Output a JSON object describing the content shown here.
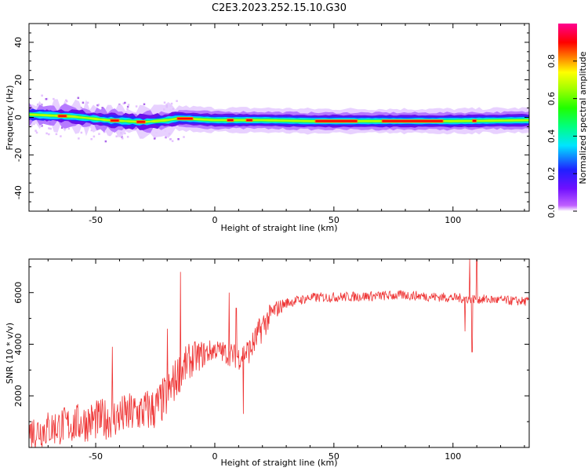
{
  "title": "C2E3.2023.252.15.10.G30",
  "chart_data": [
    {
      "type": "heatmap",
      "name": "spectrogram",
      "xlabel": "Height of straight line (km)",
      "ylabel": "Frequency (Hz)",
      "xlim": [
        -78,
        132
      ],
      "ylim": [
        -50,
        50
      ],
      "xticks": [
        -50,
        0,
        50,
        100
      ],
      "yticks": [
        -40,
        -20,
        0,
        20,
        40
      ],
      "ridge_center_hz": [
        {
          "x": -78,
          "y": 1.5
        },
        {
          "x": -60,
          "y": 0.5
        },
        {
          "x": -45,
          "y": -1.5
        },
        {
          "x": -30,
          "y": -2.5
        },
        {
          "x": -20,
          "y": -1.5
        },
        {
          "x": -15,
          "y": -0.5
        },
        {
          "x": 0,
          "y": -1.5
        },
        {
          "x": 20,
          "y": -1.5
        },
        {
          "x": 40,
          "y": -2
        },
        {
          "x": 60,
          "y": -2
        },
        {
          "x": 80,
          "y": -2
        },
        {
          "x": 100,
          "y": -2
        },
        {
          "x": 132,
          "y": -1.5
        }
      ],
      "colorbar": {
        "label": "Normalized spectral amplitude",
        "range": [
          0,
          1
        ],
        "ticks": [
          "0.0",
          "0.2",
          "0.4",
          "0.6",
          "0.8"
        ],
        "colors": [
          "#ffffff",
          "#a020f0",
          "#2020ff",
          "#00e5ff",
          "#00ff40",
          "#80ff00",
          "#ffff00",
          "#ff8000",
          "#ff0000",
          "#ff0080"
        ]
      }
    },
    {
      "type": "line",
      "name": "snr",
      "xlabel": "Height of straight line (km)",
      "ylabel": "SNR (10 * v/v)",
      "xlim": [
        -78,
        132
      ],
      "ylim": [
        0,
        7300
      ],
      "xticks": [
        -50,
        0,
        50,
        100
      ],
      "yticks": [
        2000,
        4000,
        6000
      ],
      "color": "#ee3333",
      "trend": [
        {
          "x": -78,
          "y": 600
        },
        {
          "x": -60,
          "y": 900
        },
        {
          "x": -40,
          "y": 1200
        },
        {
          "x": -25,
          "y": 1500
        },
        {
          "x": -20,
          "y": 2000
        },
        {
          "x": -15,
          "y": 2900
        },
        {
          "x": -10,
          "y": 3400
        },
        {
          "x": 0,
          "y": 3800
        },
        {
          "x": 10,
          "y": 3500
        },
        {
          "x": 15,
          "y": 3800
        },
        {
          "x": 20,
          "y": 4700
        },
        {
          "x": 25,
          "y": 5300
        },
        {
          "x": 30,
          "y": 5600
        },
        {
          "x": 40,
          "y": 5800
        },
        {
          "x": 60,
          "y": 5850
        },
        {
          "x": 80,
          "y": 5900
        },
        {
          "x": 100,
          "y": 5800
        },
        {
          "x": 132,
          "y": 5650
        }
      ],
      "noise_amplitude": [
        {
          "x": -78,
          "y": 700
        },
        {
          "x": -20,
          "y": 900
        },
        {
          "x": -10,
          "y": 700
        },
        {
          "x": 0,
          "y": 400
        },
        {
          "x": 20,
          "y": 600
        },
        {
          "x": 30,
          "y": 200
        },
        {
          "x": 132,
          "y": 180
        }
      ],
      "spikes": [
        {
          "x": -14.5,
          "y": 6800
        },
        {
          "x": -20,
          "y": 4600
        },
        {
          "x": -43,
          "y": 3900
        },
        {
          "x": 6,
          "y": 6000
        },
        {
          "x": 9,
          "y": 5400
        },
        {
          "x": 12,
          "y": 1300
        },
        {
          "x": 105,
          "y": 4500
        },
        {
          "x": 107,
          "y": 7300
        },
        {
          "x": 108,
          "y": 3700
        },
        {
          "x": 110,
          "y": 7300
        }
      ]
    }
  ]
}
